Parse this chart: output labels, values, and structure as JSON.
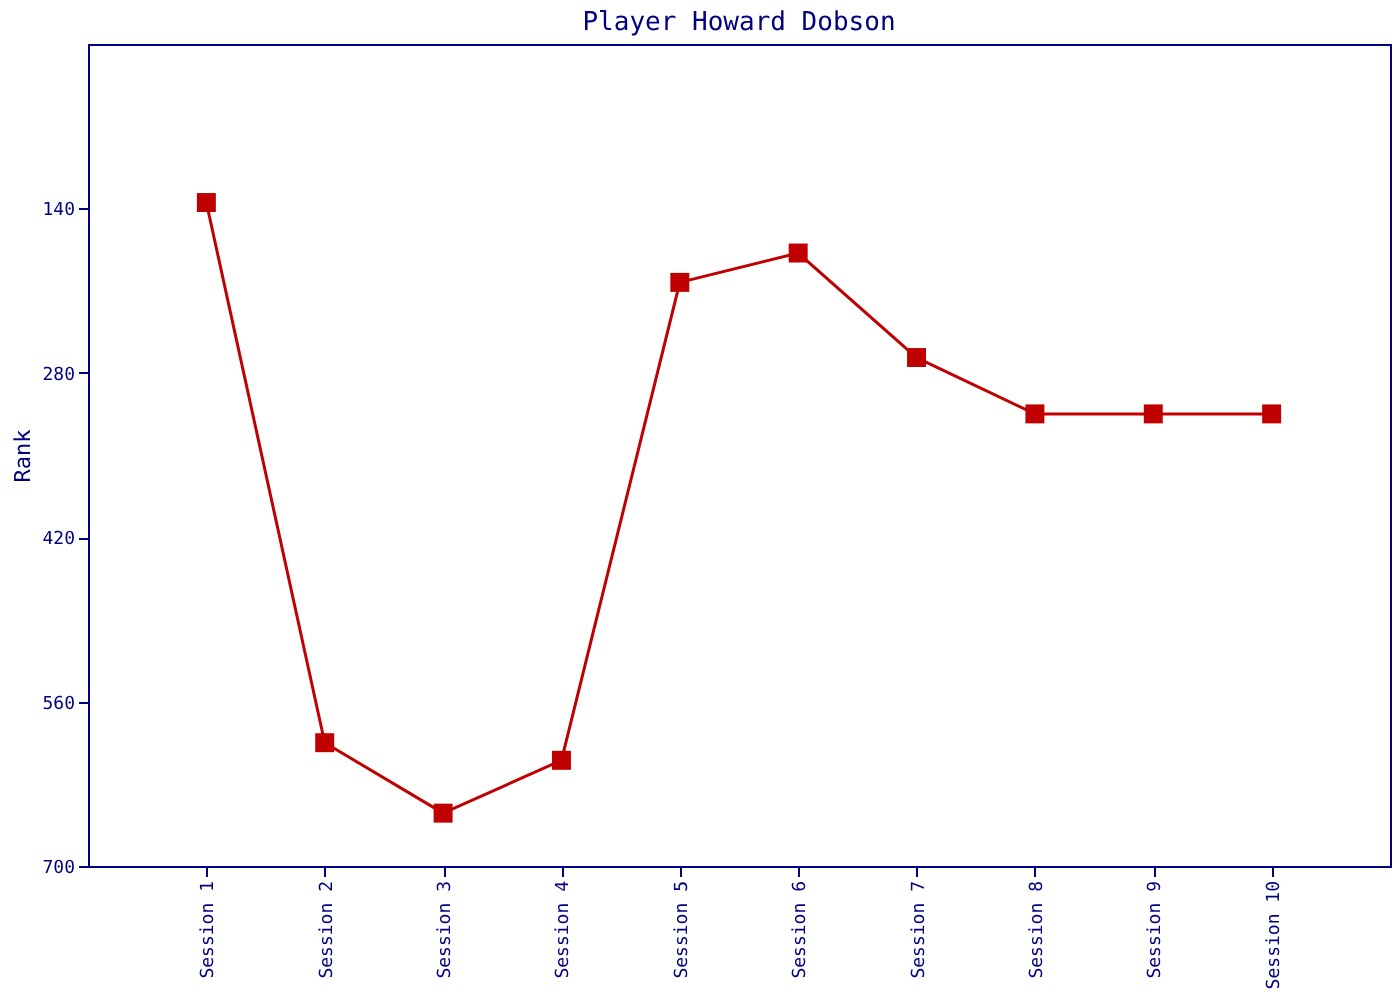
{
  "chart_data": {
    "type": "line",
    "title": "Player Howard Dobson",
    "ylabel": "Rank",
    "categories": [
      "Session 1",
      "Session 2",
      "Session 3",
      "Session 4",
      "Session 5",
      "Session 6",
      "Session 7",
      "Session 8",
      "Session 9",
      "Session 10"
    ],
    "series": [
      {
        "color": "#c00000",
        "values": [
          135,
          595,
          655,
          610,
          203,
          178,
          267,
          315,
          315,
          315
        ]
      }
    ],
    "ylim": [
      700,
      0
    ],
    "yticks": [
      140,
      280,
      420,
      560,
      700
    ],
    "grid": false,
    "marker": "square",
    "line_style": "solid"
  }
}
